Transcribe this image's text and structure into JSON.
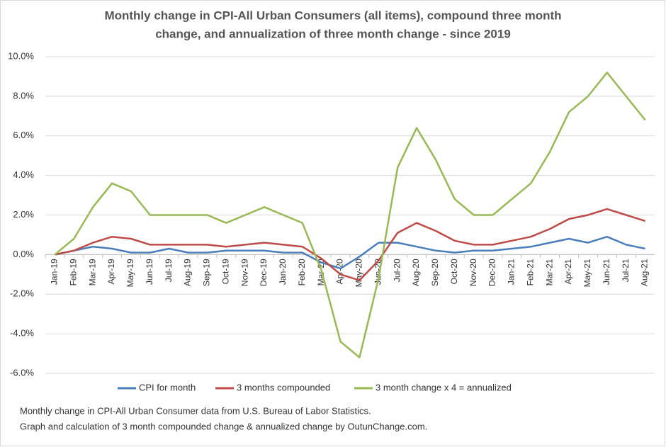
{
  "chart_data": {
    "type": "line",
    "title": [
      "Monthly change in CPI-All Urban Consumers (all items), compound three month",
      "change, and annualization of three month change - since 2019"
    ],
    "categories": [
      "Jan-19",
      "Feb-19",
      "Mar-19",
      "Apr-19",
      "May-19",
      "Jun-19",
      "Jul-19",
      "Aug-19",
      "Sep-19",
      "Oct-19",
      "Nov-19",
      "Dec-19",
      "Jan-20",
      "Feb-20",
      "Mar-20",
      "Apr-20",
      "May-20",
      "Jun-20",
      "Jul-20",
      "Aug-20",
      "Sep-20",
      "Oct-20",
      "Nov-20",
      "Dec-20",
      "Jan-21",
      "Feb-21",
      "Mar-21",
      "Apr-21",
      "May-21",
      "Jun-21",
      "Jul-21",
      "Aug-21"
    ],
    "series": [
      {
        "name": "CPI for month",
        "color": "#4a7ebb",
        "values": [
          0.0,
          0.2,
          0.4,
          0.3,
          0.1,
          0.1,
          0.3,
          0.1,
          0.1,
          0.2,
          0.2,
          0.2,
          0.1,
          0.1,
          -0.4,
          -0.7,
          -0.1,
          0.6,
          0.6,
          0.4,
          0.2,
          0.1,
          0.2,
          0.2,
          0.3,
          0.4,
          0.6,
          0.8,
          0.6,
          0.9,
          0.5,
          0.3
        ]
      },
      {
        "name": "3 months compounded",
        "color": "#be4b48",
        "values": [
          0.0,
          0.2,
          0.6,
          0.9,
          0.8,
          0.5,
          0.5,
          0.5,
          0.5,
          0.4,
          0.5,
          0.6,
          0.5,
          0.4,
          -0.2,
          -1.0,
          -1.3,
          -0.3,
          1.1,
          1.6,
          1.2,
          0.7,
          0.5,
          0.5,
          0.7,
          0.9,
          1.3,
          1.8,
          2.0,
          2.3,
          2.0,
          1.7
        ]
      },
      {
        "name": "3 month change x 4 = annualized",
        "color": "#98b954",
        "values": [
          0.0,
          0.8,
          2.4,
          3.6,
          3.2,
          2.0,
          2.0,
          2.0,
          2.0,
          1.6,
          2.0,
          2.4,
          2.0,
          1.6,
          -0.8,
          -4.4,
          -5.2,
          -1.2,
          4.4,
          6.4,
          4.8,
          2.8,
          2.0,
          2.0,
          2.8,
          3.6,
          5.2,
          7.2,
          8.0,
          9.2,
          8.0,
          6.8
        ]
      }
    ],
    "ylim": [
      -6,
      10
    ],
    "yticks": [
      {
        "value": -6,
        "label": "-6.0%"
      },
      {
        "value": -4,
        "label": "-4.0%"
      },
      {
        "value": -2,
        "label": "-2.0%"
      },
      {
        "value": 0,
        "label": "0.0%"
      },
      {
        "value": 2,
        "label": "2.0%"
      },
      {
        "value": 4,
        "label": "4.0%"
      },
      {
        "value": 6,
        "label": "6.0%"
      },
      {
        "value": 8,
        "label": "8.0%"
      },
      {
        "value": 10,
        "label": "10.0%"
      }
    ],
    "grid": true,
    "legend": "bottom",
    "notes": [
      "Monthly change in CPI-All Urban Consumer data from U.S. Bureau of Labor Statistics.",
      "Graph and calculation of 3 month compounded  change & annualized change by OutunChange.com."
    ]
  }
}
